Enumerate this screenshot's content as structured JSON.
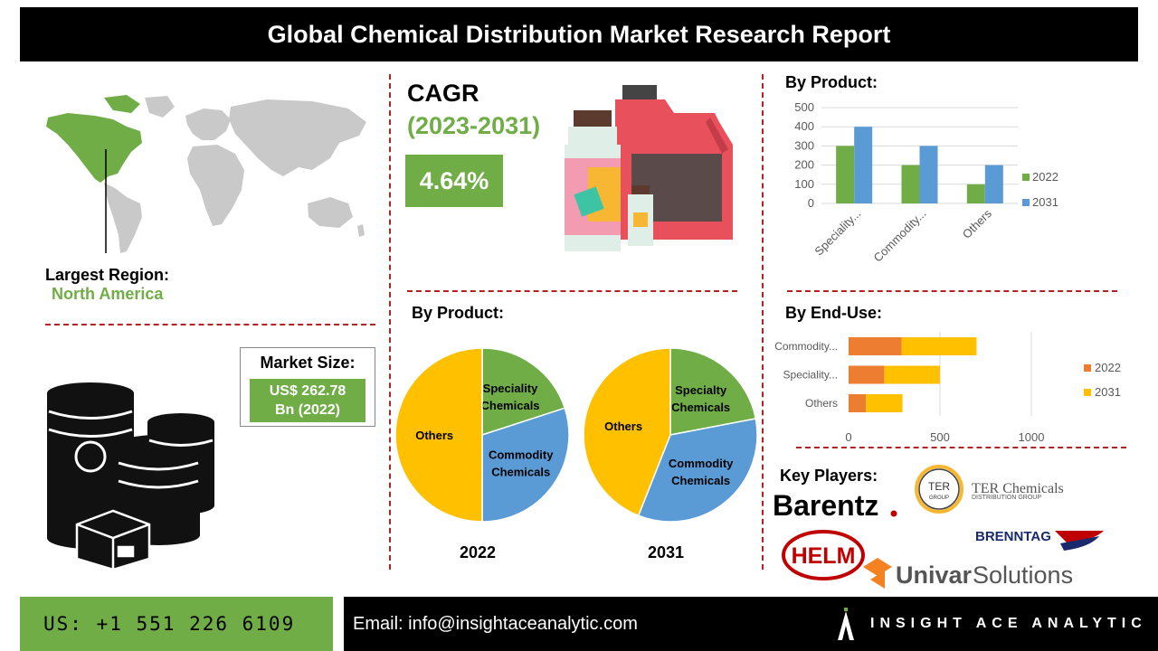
{
  "header": {
    "title": "Global Chemical Distribution Market Research Report"
  },
  "region": {
    "label": "Largest Region:",
    "value": "North America"
  },
  "cagr": {
    "title": "CAGR",
    "years": "(2023-2031)",
    "value": "4.64%"
  },
  "market_size": {
    "label": "Market Size:",
    "value_line1": "US$ 262.78",
    "value_line2": "Bn (2022)"
  },
  "sections": {
    "by_product_bar": "By Product:",
    "by_product_pie": "By Product:",
    "by_end_use": "By End-Use:",
    "key_players": "Key Players:"
  },
  "players": {
    "barentz": "Barentz",
    "ter_badge": "TER",
    "ter_badge_sub": "GROUP",
    "ter_name": "TER Chemicals",
    "ter_sub": "DISTRIBUTION GROUP",
    "brenntag": "BRENNTAG",
    "helm": "HELM",
    "univar_a": "Univar",
    "univar_b": "Solutions"
  },
  "footer": {
    "phone": "US: +1 551 226 6109",
    "email": "Email: info@insightaceanalytic.com",
    "brand": "INSIGHT ACE ANALYTIC"
  },
  "colors": {
    "green": "#70ad47",
    "blue": "#5b9bd5",
    "orange": "#ed7d31",
    "yellow": "#ffc000",
    "red_dash": "#b22222"
  },
  "chart_data": [
    {
      "type": "bar",
      "categories": [
        "Speciality...",
        "Commodity...",
        "Others"
      ],
      "series": [
        {
          "name": "2022",
          "values": [
            300,
            200,
            100
          ]
        },
        {
          "name": "2031",
          "values": [
            400,
            300,
            200
          ]
        }
      ],
      "ylim": [
        0,
        500
      ],
      "yticks": [
        "0",
        "100",
        "200",
        "300",
        "400",
        "500"
      ],
      "grid": true,
      "legend": "right"
    },
    {
      "type": "bar",
      "orientation": "horizontal",
      "stacked": true,
      "categories": [
        "Commodity...",
        "Speciality...",
        "Others"
      ],
      "series": [
        {
          "name": "2022",
          "values": [
            290,
            195,
            95
          ]
        },
        {
          "name": "2031",
          "values": [
            410,
            305,
            200
          ]
        }
      ],
      "xlim": [
        0,
        1300
      ],
      "xticks": [
        "0",
        "500",
        "1000"
      ],
      "legend": "right"
    },
    {
      "type": "pie",
      "label": "2022",
      "slices": [
        {
          "name": "Speciality Chemicals",
          "value": 20
        },
        {
          "name": "Commodity Chemicals",
          "value": 30
        },
        {
          "name": "Others",
          "value": 50
        }
      ]
    },
    {
      "type": "pie",
      "label": "2031",
      "slices": [
        {
          "name": "Specialty Chemicals",
          "value": 22
        },
        {
          "name": "Commodity Chemicals",
          "value": 34
        },
        {
          "name": "Others",
          "value": 44
        }
      ]
    }
  ]
}
